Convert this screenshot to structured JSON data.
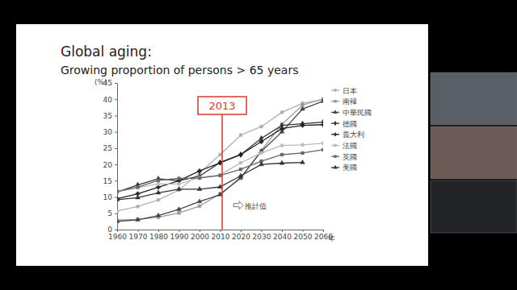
{
  "chart_data": {
    "type": "line",
    "title": "Global aging:",
    "subtitle": "Growing proportion of persons > 65 years",
    "x_label": "年",
    "y_label": "(%)",
    "x": [
      1960,
      1970,
      1980,
      1990,
      2000,
      2010,
      2020,
      2030,
      2040,
      2050,
      2060
    ],
    "series": [
      {
        "name": "日本",
        "color": "#b0b0b0",
        "marker": "circle",
        "values": [
          5.7,
          7.1,
          9.1,
          12.1,
          17.4,
          23,
          29,
          31.6,
          36,
          38.8,
          39.9
        ]
      },
      {
        "name": "南韓",
        "color": "#999999",
        "marker": "square",
        "values": [
          2.9,
          3.1,
          3.8,
          5.1,
          7.2,
          11,
          15.7,
          24.3,
          32.3,
          38.2,
          40.1
        ]
      },
      {
        "name": "中華民國",
        "color": "#444444",
        "marker": "triangle",
        "values": [
          2.5,
          3,
          4.3,
          6.2,
          8.6,
          10.7,
          16,
          24,
          30,
          37,
          39.4
        ]
      },
      {
        "name": "德國",
        "color": "#333333",
        "marker": "diamond",
        "values": [
          11.5,
          13.7,
          15.6,
          15,
          16.4,
          20.6,
          23,
          28,
          32,
          32.5,
          33
        ]
      },
      {
        "name": "義大利",
        "color": "#222222",
        "marker": "cross",
        "values": [
          9.5,
          11,
          13,
          15,
          18,
          20.5,
          23,
          27,
          31,
          32,
          32.2
        ]
      },
      {
        "name": "法國",
        "color": "#bbbbbb",
        "marker": "circle",
        "values": [
          11.6,
          12.9,
          14,
          14,
          16,
          16.8,
          20.5,
          23.5,
          25.8,
          26,
          26.5
        ]
      },
      {
        "name": "英國",
        "color": "#666666",
        "marker": "square",
        "values": [
          11.7,
          13,
          15.1,
          15.7,
          15.8,
          16.6,
          18.5,
          21,
          23,
          23.5,
          24.5
        ]
      },
      {
        "name": "美國",
        "color": "#333333",
        "marker": "triangle",
        "values": [
          9.2,
          9.8,
          11.3,
          12.4,
          12.4,
          13.1,
          16.5,
          20,
          20.4,
          20.6,
          null
        ]
      }
    ],
    "xlim": [
      1960,
      2060
    ],
    "ylim": [
      0,
      45
    ],
    "xticks": [
      1960,
      1970,
      1980,
      1990,
      2000,
      2010,
      2020,
      2030,
      2040,
      2050,
      2060
    ],
    "yticks": [
      0,
      5,
      10,
      15,
      20,
      25,
      30,
      35,
      40,
      45
    ],
    "grid": false,
    "legend": "right",
    "annotations": [
      {
        "x": 2011,
        "label": "2013"
      },
      {
        "x": 2022,
        "y": 7.5,
        "text": "推計值"
      }
    ]
  }
}
